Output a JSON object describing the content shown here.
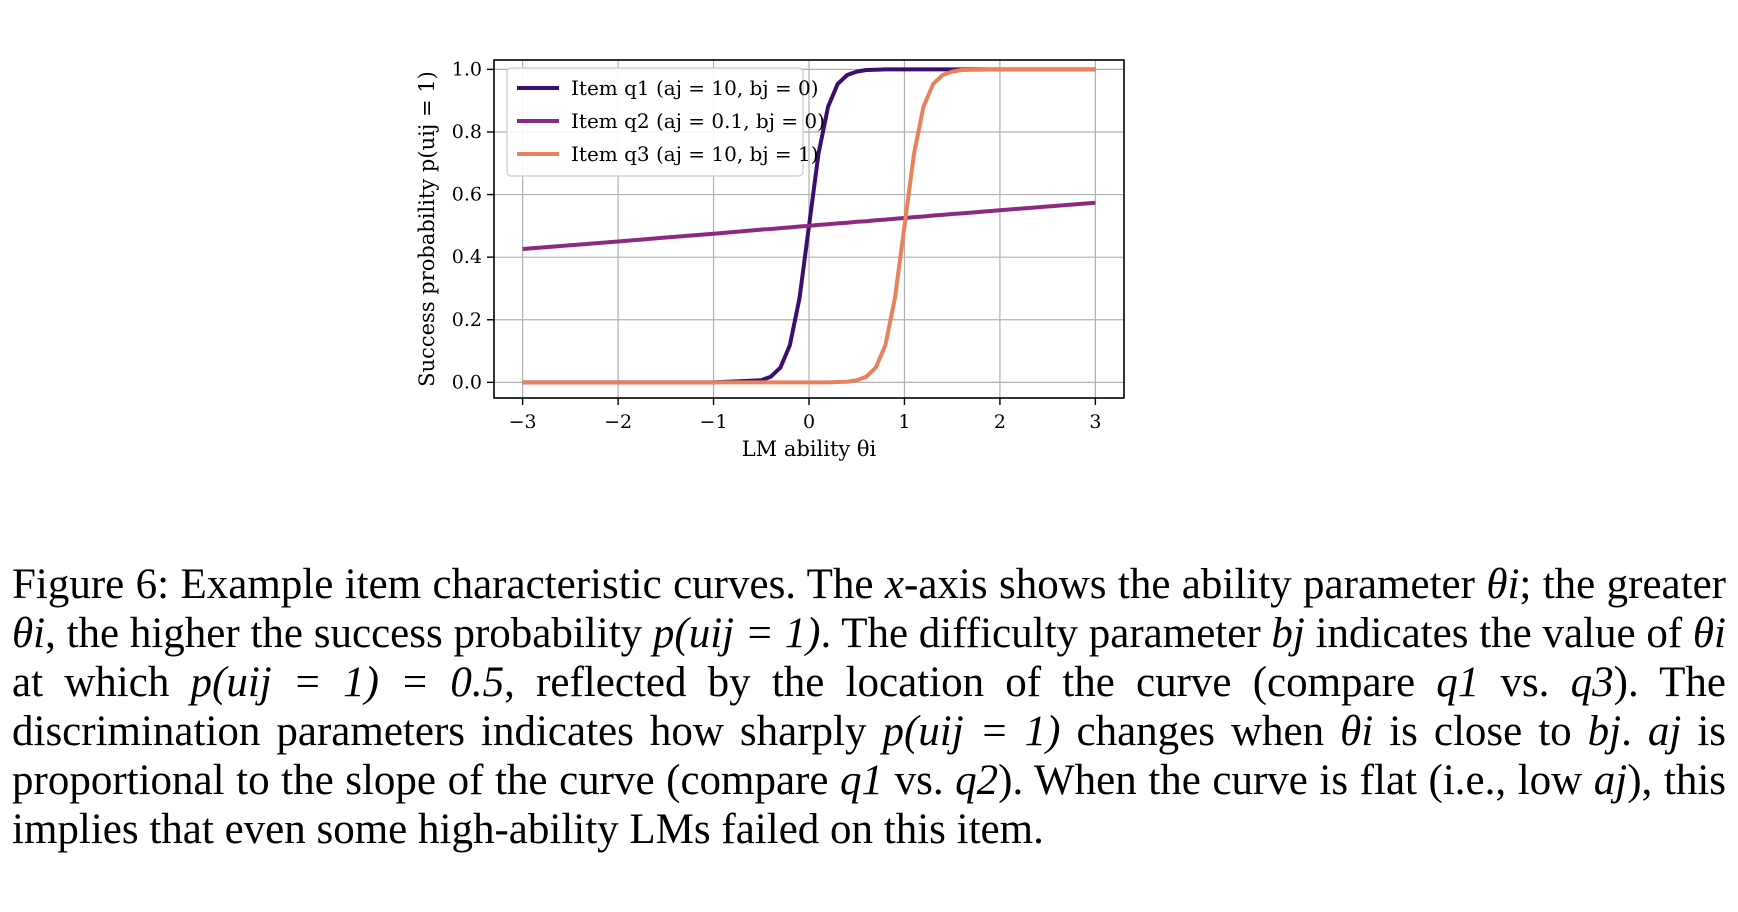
{
  "chart_data": {
    "type": "line",
    "title": "",
    "xlabel": "LM ability θi",
    "ylabel": "Success probability p(uij = 1)",
    "xlim": [
      -3.3,
      3.3
    ],
    "ylim": [
      -0.05,
      1.03
    ],
    "x_ticks": [
      -3,
      -2,
      -1,
      0,
      1,
      2,
      3
    ],
    "x_tick_labels": [
      "−3",
      "−2",
      "−1",
      "0",
      "1",
      "2",
      "3"
    ],
    "y_ticks": [
      0.0,
      0.2,
      0.4,
      0.6,
      0.8,
      1.0
    ],
    "y_tick_labels": [
      "0.0",
      "0.2",
      "0.4",
      "0.6",
      "0.8",
      "1.0"
    ],
    "grid": true,
    "legend_position": "top-left",
    "x": [
      -3,
      -2.5,
      -2,
      -1.5,
      -1,
      -0.5,
      -0.4,
      -0.3,
      -0.2,
      -0.1,
      0,
      0.1,
      0.2,
      0.3,
      0.4,
      0.5,
      0.6,
      0.7,
      0.8,
      0.9,
      1.0,
      1.1,
      1.2,
      1.3,
      1.4,
      1.5,
      1.6,
      2,
      2.5,
      3
    ],
    "series": [
      {
        "name": "Item q1 (aj = 10, bj = 0)",
        "color": "#3b0f70",
        "values": [
          0.0,
          0.0,
          0.0,
          0.0,
          0.0,
          0.007,
          0.018,
          0.047,
          0.119,
          0.269,
          0.5,
          0.731,
          0.881,
          0.953,
          0.982,
          0.993,
          0.998,
          0.999,
          1.0,
          1.0,
          1.0,
          1.0,
          1.0,
          1.0,
          1.0,
          1.0,
          1.0,
          1.0,
          1.0,
          1.0
        ]
      },
      {
        "name": "Item q2 (aj = 0.1, bj = 0)",
        "color": "#8c2981",
        "values": [
          0.426,
          0.438,
          0.45,
          0.463,
          0.475,
          0.488,
          0.49,
          0.493,
          0.495,
          0.498,
          0.5,
          0.503,
          0.505,
          0.508,
          0.51,
          0.513,
          0.515,
          0.518,
          0.52,
          0.523,
          0.525,
          0.528,
          0.53,
          0.533,
          0.535,
          0.538,
          0.54,
          0.55,
          0.562,
          0.574
        ]
      },
      {
        "name": "Item q3 (aj = 10, bj = 1)",
        "color": "#e8825c",
        "values": [
          0.0,
          0.0,
          0.0,
          0.0,
          0.0,
          0.0,
          0.0,
          0.0,
          0.0,
          0.0,
          0.0,
          0.0,
          0.0,
          0.001,
          0.002,
          0.007,
          0.018,
          0.047,
          0.119,
          0.269,
          0.5,
          0.731,
          0.881,
          0.953,
          0.982,
          0.993,
          0.998,
          1.0,
          1.0,
          1.0
        ]
      }
    ]
  },
  "caption": {
    "p1": "Figure 6: Example item characteristic curves. The ",
    "xvar": "x",
    "p2": "-axis shows the ability parameter ",
    "p3": "; the greater ",
    "p4": ", the higher the success probability ",
    "p5": ". The difficulty parameter ",
    "p6": " indicates the value of ",
    "p7": " at which ",
    "p8": ", reflected by the location of the curve (compare ",
    "p9": " vs. ",
    "p10": "). The discrimination parameters indicates how sharply ",
    "p11": " changes when ",
    "p12": " is close to ",
    "p13": ". ",
    "p14": " is proportional to the slope of the curve (compare ",
    "p15": " vs. ",
    "p16": "). When the curve is flat (i.e., low ",
    "p17": "), this implies that even some high-ability LMs failed on this item.",
    "theta": "θi",
    "bj": "bj",
    "aj": "aj",
    "q1": "q1",
    "q2": "q2",
    "q3": "q3",
    "prob": "p(uij = 1)",
    "prob_half": "p(uij = 1) = 0.5"
  }
}
